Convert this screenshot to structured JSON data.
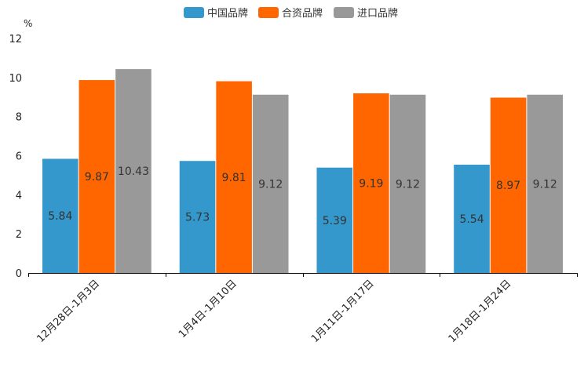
{
  "chart_data": {
    "type": "bar",
    "title": "",
    "unit": "%",
    "xlabel": "",
    "ylabel": "%",
    "ylim": [
      0,
      12
    ],
    "yticks": [
      0,
      2,
      4,
      6,
      8,
      10,
      12
    ],
    "grid": false,
    "legend_position": "top-center",
    "categories": [
      "12月28日-1月3日",
      "1月4日-1月10日",
      "1月11日-1月17日",
      "1月18日-1月24日"
    ],
    "series": [
      {
        "name": "中国品牌",
        "color": "#3498cc",
        "values": [
          5.84,
          5.73,
          5.39,
          5.54
        ]
      },
      {
        "name": "合资品牌",
        "color": "#ff6600",
        "values": [
          9.87,
          9.81,
          9.19,
          8.97
        ]
      },
      {
        "name": "进口品牌",
        "color": "#999999",
        "values": [
          10.43,
          9.12,
          9.12,
          9.12
        ]
      }
    ],
    "value_labels": [
      [
        "5.84",
        "5.73",
        "5.39",
        "5.54"
      ],
      [
        "9.87",
        "9.81",
        "9.19",
        "8.97"
      ],
      [
        "10.43",
        "9.12",
        "9.12",
        "9.12"
      ]
    ]
  }
}
